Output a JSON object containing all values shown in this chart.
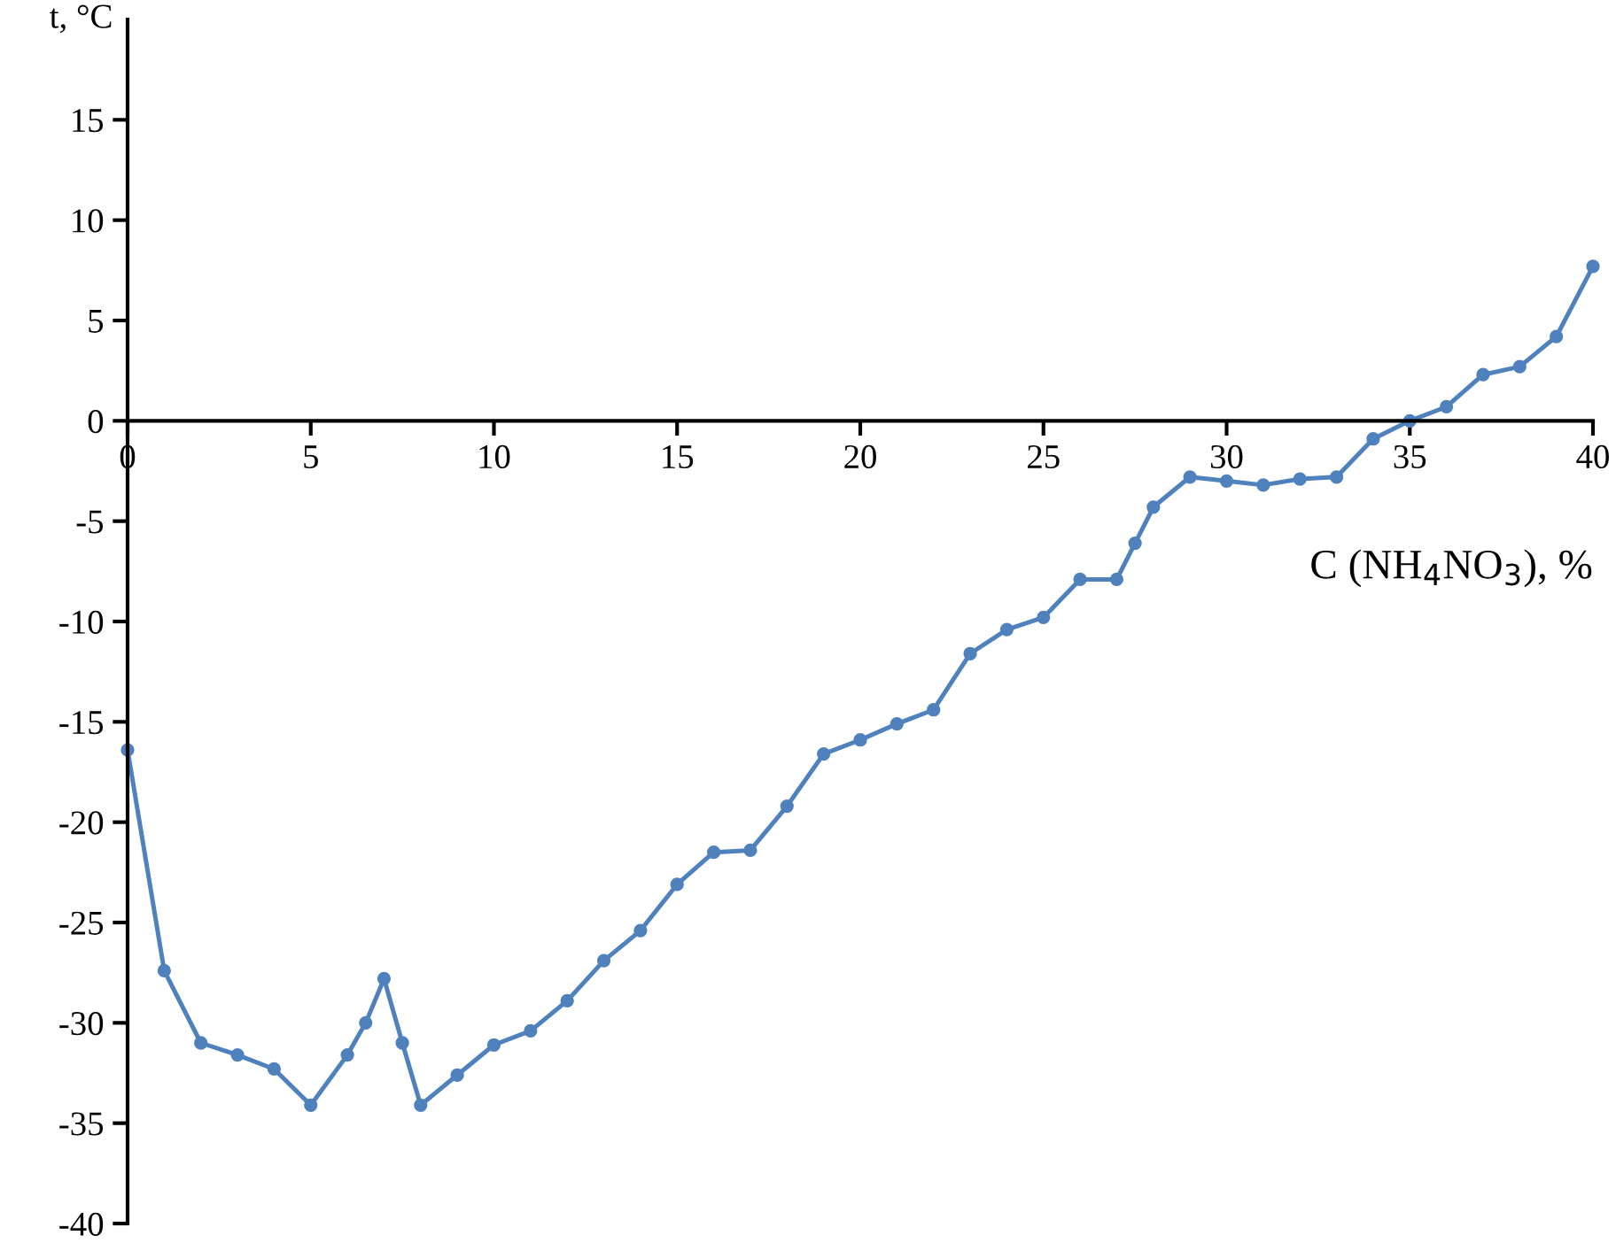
{
  "chart_data": {
    "type": "line",
    "xlabel": "C (NH$_{4}$NO$_{3}$), %",
    "ylabel": "t, °C",
    "x": [
      0,
      1,
      2,
      3,
      4,
      5,
      6,
      6.5,
      7,
      7.5,
      8,
      9,
      10,
      11,
      12,
      13,
      14,
      15,
      16,
      17,
      18,
      19,
      20,
      21,
      22,
      23,
      24,
      25,
      26,
      27,
      27.5,
      28,
      29,
      30,
      31,
      32,
      33,
      34,
      35,
      36,
      37,
      38,
      39,
      40
    ],
    "series": [
      {
        "color": "#4f81bd",
        "values": [
          -16.4,
          -27.4,
          -31.0,
          -31.6,
          -32.3,
          -34.1,
          -31.6,
          -30.0,
          -27.8,
          -31.0,
          -34.1,
          -32.6,
          -31.1,
          -30.4,
          -28.9,
          -26.9,
          -25.4,
          -23.1,
          -21.5,
          -21.4,
          -19.2,
          -16.6,
          -15.9,
          -15.1,
          -14.4,
          -11.6,
          -10.4,
          -9.8,
          -7.9,
          -7.9,
          -6.1,
          -4.3,
          -2.8,
          -3.0,
          -3.2,
          -2.9,
          -2.8,
          -0.9,
          0,
          0.7,
          2.3,
          2.7,
          4.2,
          7.7
        ]
      }
    ],
    "xlim": [
      0,
      40
    ],
    "xticks": [
      0,
      5,
      10,
      15,
      20,
      25,
      30,
      35,
      40
    ],
    "ylim": [
      -40,
      20
    ],
    "yticks": [
      -40,
      -35,
      -30,
      -25,
      -20,
      -15,
      -10,
      -5,
      0,
      5,
      10,
      15
    ],
    "marker": "circle",
    "line_style": "solid",
    "grid": false,
    "legend": false
  }
}
